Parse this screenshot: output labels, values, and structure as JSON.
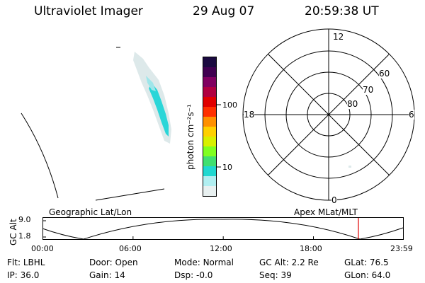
{
  "header": {
    "title": "Ultraviolet Imager",
    "date": "29 Aug 07",
    "time": "20:59:38 UT"
  },
  "colorbar": {
    "label": "photon cm⁻²s⁻¹",
    "ticks": [
      "100",
      "10"
    ],
    "colors": [
      "#e8f0f0",
      "#b0eef0",
      "#20d8d0",
      "#40e070",
      "#80ff20",
      "#d8f000",
      "#ffd000",
      "#ff9000",
      "#ff3000",
      "#e00000",
      "#b00040",
      "#800060",
      "#400050",
      "#1a0a40"
    ]
  },
  "polar_plot": {
    "mlt_labels": {
      "top": "12",
      "left": "18",
      "right": "6",
      "bottom": "0"
    },
    "lat_labels": [
      "60",
      "70",
      "80"
    ]
  },
  "timeline": {
    "ylabel": "GC Alt",
    "yticks": [
      "9.0",
      "1.8"
    ],
    "left_label": "Geographic Lat/Lon",
    "right_label": "Apex MLat/MLT",
    "xticks": [
      "00:00",
      "06:00",
      "12:00",
      "18:00",
      "23:59"
    ],
    "marker_color": "#e00000",
    "marker_time_hours": 20.99
  },
  "status": {
    "row1": [
      {
        "label": "Flt:",
        "value": "LBHL"
      },
      {
        "label": "Door:",
        "value": "Open"
      },
      {
        "label": "Mode:",
        "value": "Normal"
      },
      {
        "label": "GC Alt:",
        "value": "2.2 Re"
      },
      {
        "label": "GLat:",
        "value": "76.5"
      }
    ],
    "row2": [
      {
        "label": "IP:",
        "value": "36.0"
      },
      {
        "label": "Gain:",
        "value": "14"
      },
      {
        "label": "Dsp:",
        "value": "-0.0"
      },
      {
        "label": "Seq:",
        "value": "39"
      },
      {
        "label": "GLon:",
        "value": "64.0"
      }
    ]
  }
}
